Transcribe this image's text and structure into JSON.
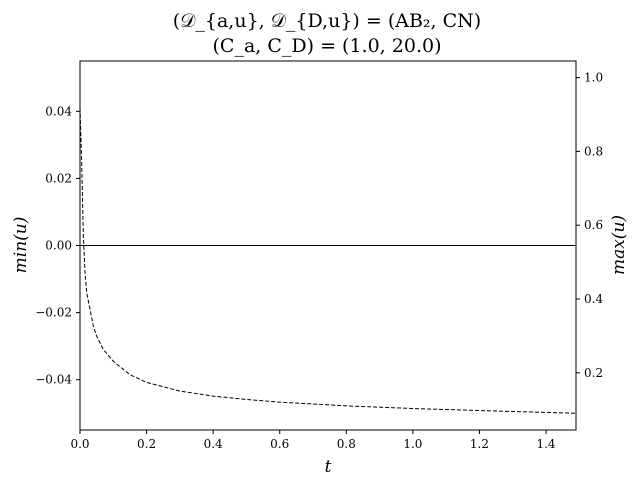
{
  "chart_data": {
    "type": "line",
    "title_lines": [
      "(𝒟_{a,u}, 𝒟_{D,u}) = (AB₂, CN)",
      "(C_a, C_D) = (1.0, 20.0)"
    ],
    "xlabel": "t",
    "ylabel_left": "min(u)",
    "ylabel_right": "max(u)",
    "xlim": [
      0.0,
      1.49
    ],
    "ylim_left": [
      -0.055,
      0.055
    ],
    "ylim_right": [
      0.045,
      1.045
    ],
    "x_ticks": [
      0.0,
      0.2,
      0.4,
      0.6,
      0.8,
      1.0,
      1.2,
      1.4
    ],
    "x_tick_labels": [
      "0.0",
      "0.2",
      "0.4",
      "0.6",
      "0.8",
      "1.0",
      "1.2",
      "1.4"
    ],
    "y_left_ticks": [
      0.04,
      0.02,
      0.0,
      -0.02,
      -0.04
    ],
    "y_left_tick_labels": [
      "0.04",
      "0.02",
      "0.00",
      "−0.02",
      "−0.04"
    ],
    "y_right_ticks": [
      1.0,
      0.8,
      0.6,
      0.4,
      0.2
    ],
    "y_right_tick_labels": [
      "1.0",
      "0.8",
      "0.6",
      "0.4",
      "0.2"
    ],
    "grid": false,
    "legend": "none",
    "series": [
      {
        "axis": "left",
        "style": "dashed",
        "color": "#000000",
        "x": [
          0.0,
          0.005,
          0.01,
          0.015,
          0.02,
          0.03,
          0.04,
          0.05,
          0.07,
          0.1,
          0.15,
          0.2,
          0.3,
          0.4,
          0.5,
          0.6,
          0.8,
          1.0,
          1.2,
          1.49
        ],
        "y": [
          0.041,
          0.025,
          0.003,
          -0.008,
          -0.014,
          -0.019,
          -0.024,
          -0.027,
          -0.031,
          -0.0345,
          -0.0385,
          -0.0408,
          -0.0434,
          -0.0449,
          -0.0459,
          -0.0467,
          -0.0478,
          -0.0486,
          -0.0492,
          -0.05
        ]
      },
      {
        "axis": "right",
        "style": "solid",
        "color": "#000000",
        "x": [
          0.0,
          1.49
        ],
        "y": [
          0.545,
          0.545
        ]
      }
    ]
  }
}
